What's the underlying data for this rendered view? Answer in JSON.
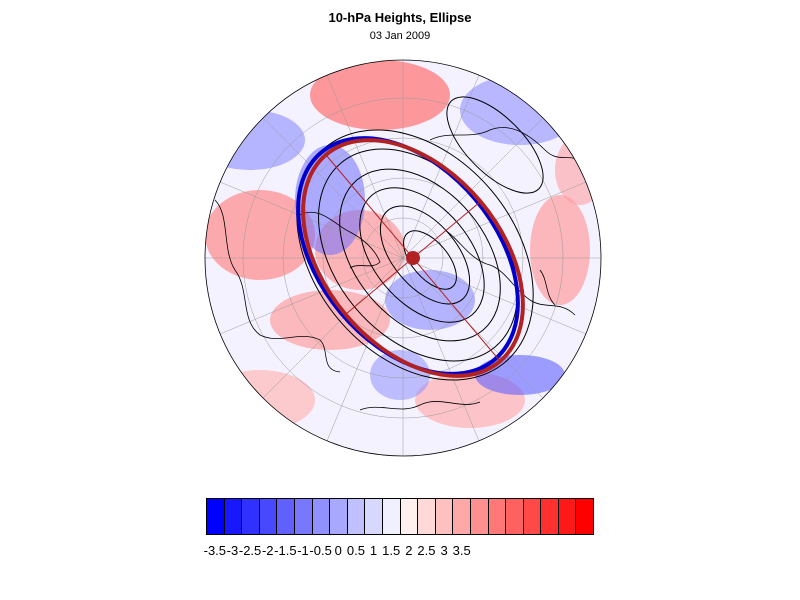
{
  "header": {
    "title": "10-hPa Heights, Ellipse",
    "subtitle": "03 Jan 2009"
  },
  "map": {
    "projection": "polar-stereographic-north",
    "contour_color": "#000000",
    "ellipse_colors": {
      "fitted": "#b22222",
      "reference": "#0000cc"
    },
    "center_marker_color": "#b22222"
  },
  "colorbar": {
    "colors": [
      "#0000ff",
      "#1818ff",
      "#3030ff",
      "#4848ff",
      "#6060ff",
      "#7878ff",
      "#9090ff",
      "#a8a8ff",
      "#c0c0ff",
      "#d8d8ff",
      "#f0f0ff",
      "#fff0f0",
      "#ffd8d8",
      "#ffc0c0",
      "#ffa8a8",
      "#ff9090",
      "#ff7878",
      "#ff6060",
      "#ff4848",
      "#ff3030",
      "#ff1818",
      "#ff0000"
    ],
    "tick_labels": [
      "-3.5",
      "-3",
      "-2.5",
      "-2",
      "-1.5",
      "-1",
      "-0.5",
      "0",
      "0.5",
      "1",
      "1.5",
      "2",
      "2.5",
      "3",
      "3.5"
    ]
  }
}
